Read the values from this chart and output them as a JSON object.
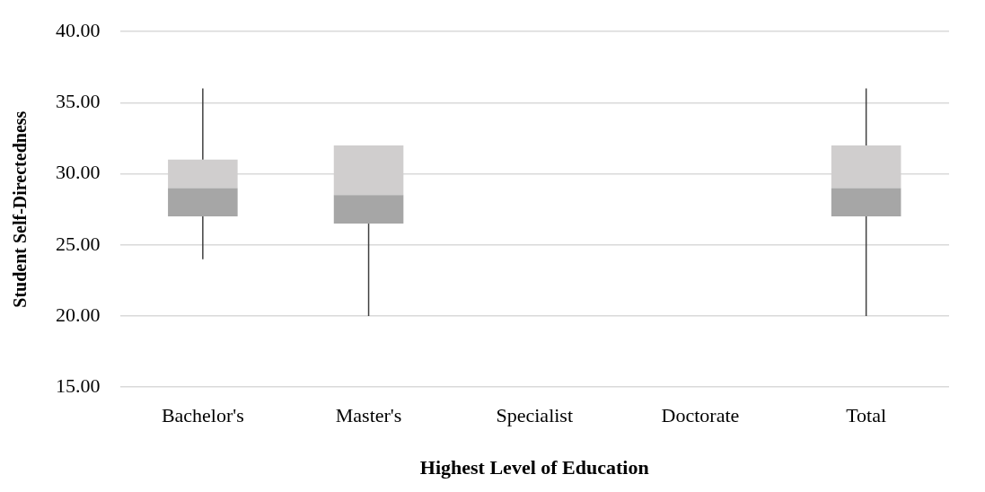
{
  "chart_data": {
    "type": "box",
    "xlabel": "Highest Level of Education",
    "ylabel": "Student Self-Directedness",
    "categories": [
      "Bachelor's",
      "Master's",
      "Specialist",
      "Doctorate",
      "Total"
    ],
    "series": [
      {
        "colors": [
          "#a6a6a6",
          "#a6a6a6",
          "#a6a6a6",
          "#a6a6a6",
          "#a6a6a6"
        ],
        "color": "#d0cece",
        "boxes": [
          {
            "low": 24,
            "q1": 27,
            "median": 29,
            "q3": 31,
            "high": 36
          },
          {
            "low": 20,
            "q1": 26.5,
            "median": 28.5,
            "q3": 32,
            "high": 32
          },
          null,
          null,
          {
            "low": 20,
            "q1": 27,
            "median": 29,
            "q3": 32,
            "high": 36
          }
        ]
      }
    ],
    "ylim": [
      15,
      40
    ],
    "yticks": [
      {
        "value": 15,
        "label": "15.00"
      },
      {
        "value": 20,
        "label": "20.00"
      },
      {
        "value": 25,
        "label": "25.00"
      },
      {
        "value": 30,
        "label": "30.00"
      },
      {
        "value": 35,
        "label": "35.00"
      },
      {
        "value": 40,
        "label": "40.00"
      }
    ],
    "grid": "y",
    "legend": false
  }
}
